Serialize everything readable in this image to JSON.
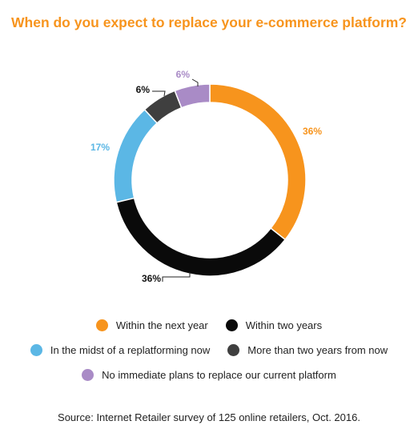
{
  "chart_data": {
    "type": "donut",
    "title": "When do you expect to replace your e-commerce platform?",
    "slices": [
      {
        "label": "Within the next year",
        "value": 36,
        "value_label": "36%",
        "color": "#f7941d",
        "label_color": "#f7941d"
      },
      {
        "label": "Within two years",
        "value": 36,
        "value_label": "36%",
        "color": "#0a0a0a",
        "label_color": "#111111"
      },
      {
        "label": "In the midst of a replatforming now",
        "value": 17,
        "value_label": "17%",
        "color": "#5bb7e5",
        "label_color": "#5bb7e5"
      },
      {
        "label": "More than two years from now",
        "value": 6,
        "value_label": "6%",
        "color": "#3f3f3f",
        "label_color": "#111111"
      },
      {
        "label": "No immediate plans to replace our current platform",
        "value": 6,
        "value_label": "6%",
        "color": "#a98bc6",
        "label_color": "#a98bc6"
      }
    ],
    "legend_rows": [
      [
        0,
        1
      ],
      [
        2,
        3
      ],
      [
        4
      ]
    ],
    "source": "Source: Internet Retailer survey of 125 online retailers, Oct. 2016."
  }
}
